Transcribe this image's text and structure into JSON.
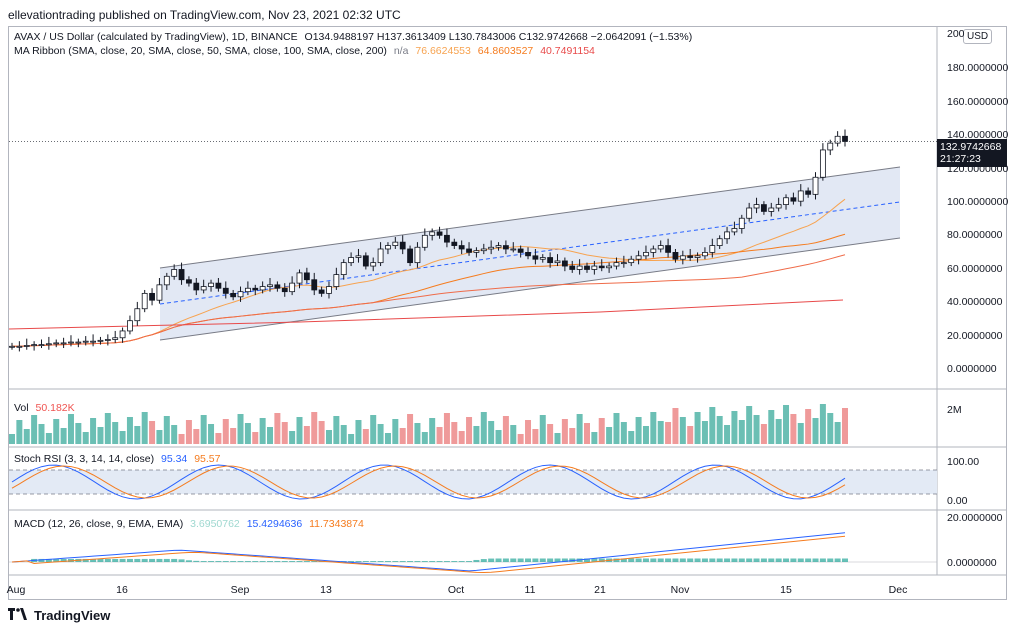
{
  "header": {
    "publisher": "ellevationtrading published on TradingView.com, Nov 23, 2021 02:32 UTC"
  },
  "legend": {
    "title": "AVAX / US Dollar (calculated by TradingView), 1D, BINANCE",
    "ohlc": "O134.9488197  H137.3613409  L130.7843006  C132.9742668  −2.0642091 (−1.53%)",
    "ma_label": "MA Ribbon (SMA, close, 20, SMA, close, 50, SMA, close, 100, SMA, close, 200)",
    "ma_na": "n/a",
    "ma_values": [
      "76.6624553",
      "64.8603527",
      "40.7491154"
    ],
    "vol_label": "Vol",
    "vol_value": "50.182K",
    "stoch_label": "Stoch RSI (3, 3, 14, 14, close)",
    "stoch_k": "95.34",
    "stoch_d": "95.57",
    "macd_label": "MACD (12, 26, close, 9, EMA, EMA)",
    "macd_hist": "3.6950762",
    "macd_line": "15.4294636",
    "macd_signal": "11.7343874"
  },
  "price_axis": {
    "currency": "USD",
    "ticks": [
      "200",
      "180.0000000",
      "160.0000000",
      "140.0000000",
      "120.0000000",
      "100.0000000",
      "80.0000000",
      "60.0000000",
      "40.0000000",
      "20.0000000",
      "0.0000000"
    ],
    "last_price": "132.9742668",
    "countdown": "21:27:23"
  },
  "vol_axis": {
    "ticks": [
      "2M"
    ]
  },
  "stoch_axis": {
    "ticks": [
      "100.00",
      "0.00"
    ]
  },
  "macd_axis": {
    "ticks": [
      "20.0000000",
      "0.0000000"
    ]
  },
  "time_axis": {
    "ticks": [
      "Aug",
      "16",
      "Sep",
      "13",
      "Oct",
      "11",
      "21",
      "Nov",
      "15",
      "Dec"
    ]
  },
  "footer": {
    "brand": "TradingView"
  },
  "colors": {
    "up": "#131722",
    "down": "#131722",
    "channel_fill": "#d6deef",
    "channel_line": "#787b86",
    "midline": "#2962ff",
    "ma20": "#f7a350",
    "ma50": "#f57c1f",
    "ma100": "#ef6c4a",
    "ma200": "#e84a4a",
    "vol_up": "#6bbfb4",
    "vol_down": "#ef9a9a",
    "stoch_k": "#2962ff",
    "stoch_d": "#f57c1f",
    "macd_line": "#2962ff",
    "macd_signal": "#f57c1f",
    "hist_up": "#26a69a",
    "hist_down": "#ef5350"
  },
  "chart_data": {
    "type": "candlestick",
    "symbol": "AVAX / US Dollar",
    "interval": "1D",
    "y_range": [
      -12,
      200
    ],
    "closes": [
      13,
      13,
      13.5,
      14,
      14,
      14.5,
      15,
      15,
      15.5,
      15.5,
      16,
      16,
      16.5,
      17,
      18,
      22,
      28,
      35,
      44,
      40,
      49,
      54,
      58,
      52,
      50,
      46,
      48,
      50,
      47,
      44,
      42,
      45,
      47,
      46,
      48,
      49,
      47,
      45,
      50,
      56,
      52,
      46,
      44,
      48,
      55,
      62,
      65,
      66,
      60,
      62,
      70,
      72,
      74,
      70,
      62,
      71,
      78,
      80,
      78,
      74,
      72,
      70,
      68,
      69,
      70,
      71,
      72,
      70,
      70,
      68,
      66,
      64,
      65,
      62,
      63,
      60,
      58,
      60,
      58,
      60,
      59,
      60,
      62,
      62,
      64,
      66,
      68,
      70,
      72,
      68,
      64,
      66,
      65,
      66,
      68,
      72,
      76,
      80,
      82,
      88,
      94,
      96,
      92,
      94,
      96,
      100,
      98,
      104,
      102,
      112,
      128,
      132,
      136,
      133
    ]
  }
}
